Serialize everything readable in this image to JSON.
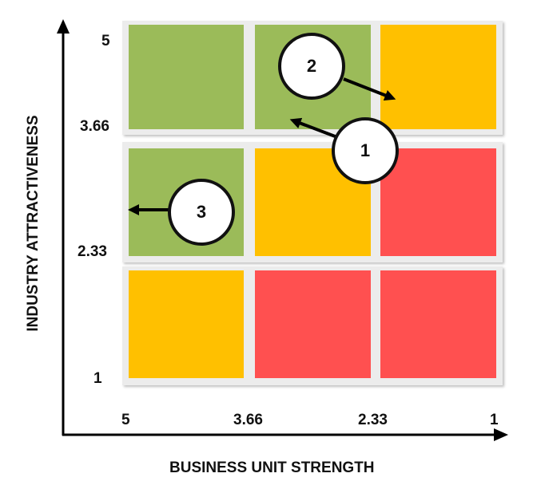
{
  "colors": {
    "green": "#9bbb59",
    "amber": "#ffc000",
    "red": "#ff5050",
    "axis": "#000000"
  },
  "grid": {
    "rows": [
      [
        "green",
        "green",
        "amber"
      ],
      [
        "green",
        "amber",
        "red"
      ],
      [
        "amber",
        "red",
        "red"
      ]
    ]
  },
  "y_axis": {
    "title": "INDUSTRY ATTRACTIVENESS",
    "ticks": [
      "5",
      "3.66",
      "2.33",
      "1"
    ]
  },
  "x_axis": {
    "title": "BUSINESS UNIT STRENGTH",
    "ticks": [
      "5",
      "3.66",
      "2.33",
      "1"
    ]
  },
  "markers": [
    {
      "label": "1",
      "arrow_direction": "upper-left"
    },
    {
      "label": "2",
      "arrow_direction": "lower-right"
    },
    {
      "label": "3",
      "arrow_direction": "left"
    }
  ]
}
